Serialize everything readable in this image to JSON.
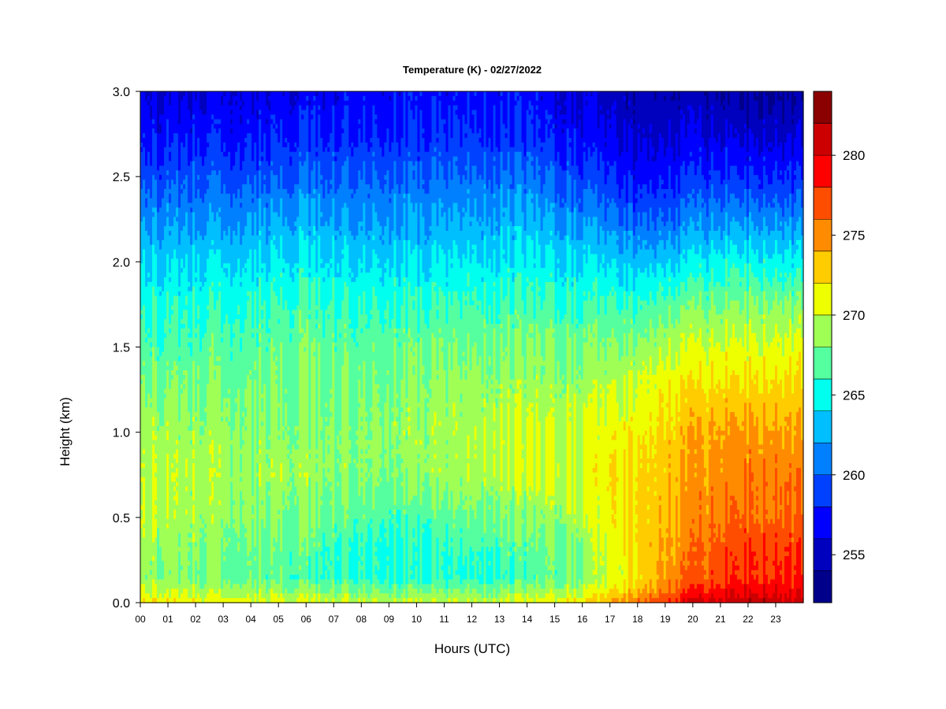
{
  "chart_data": {
    "type": "heatmap",
    "title": "Temperature (K) - 02/27/2022",
    "xlabel": "Hours (UTC)",
    "ylabel": "Height (km)",
    "xlim": [
      0,
      24
    ],
    "ylim": [
      0,
      3
    ],
    "x_ticks": [
      "00",
      "01",
      "02",
      "03",
      "04",
      "05",
      "06",
      "07",
      "08",
      "09",
      "10",
      "11",
      "12",
      "13",
      "14",
      "15",
      "16",
      "17",
      "18",
      "19",
      "20",
      "21",
      "22",
      "23"
    ],
    "y_ticks": [
      "0.0",
      "0.5",
      "1.0",
      "1.5",
      "2.0",
      "2.5",
      "3.0"
    ],
    "y_tick_values": [
      0,
      0.5,
      1.0,
      1.5,
      2.0,
      2.5,
      3.0
    ],
    "colorbar": {
      "min": 252,
      "max": 284,
      "step": 2,
      "tick_values": [
        255,
        260,
        265,
        270,
        275,
        280
      ],
      "tick_labels": [
        "255",
        "260",
        "265",
        "270",
        "275",
        "280"
      ],
      "colors": [
        "#00008b",
        "#0000bf",
        "#0000ff",
        "#0040ff",
        "#0080ff",
        "#00bfff",
        "#00ffee",
        "#55ffa0",
        "#a0ff55",
        "#eeff00",
        "#ffcc00",
        "#ff8c00",
        "#ff4d00",
        "#ff0000",
        "#cc0000",
        "#8b0000"
      ]
    },
    "profile_heights_km": [
      0.0,
      0.05,
      0.15,
      0.3,
      0.5,
      0.75,
      1.0,
      1.25,
      1.5,
      1.75,
      2.0,
      2.25,
      2.5,
      2.75,
      3.0
    ],
    "profile_hours": [
      0,
      2,
      4,
      6,
      8,
      10,
      12,
      14,
      16,
      17,
      18,
      19,
      20,
      21,
      22,
      23.9
    ],
    "temperature_K": [
      [
        272.0,
        271.5,
        271.2,
        270.8,
        270.5,
        270.0,
        270.0,
        271.0,
        272.0,
        274.0,
        276.0,
        278.0,
        280.0,
        281.0,
        281.5,
        281.0
      ],
      [
        270.5,
        270.0,
        269.5,
        269.0,
        268.5,
        268.5,
        268.5,
        269.0,
        270.0,
        272.0,
        274.0,
        276.0,
        278.5,
        279.5,
        280.0,
        279.5
      ],
      [
        268.5,
        268.0,
        267.5,
        266.5,
        266.0,
        265.5,
        266.0,
        266.5,
        268.0,
        270.0,
        272.0,
        274.5,
        276.0,
        277.5,
        278.0,
        278.0
      ],
      [
        269.0,
        268.5,
        267.5,
        267.0,
        266.0,
        265.5,
        266.5,
        267.0,
        268.5,
        270.5,
        272.5,
        274.0,
        275.5,
        277.0,
        278.0,
        277.5
      ],
      [
        269.5,
        269.0,
        268.5,
        268.0,
        267.0,
        266.5,
        268.0,
        268.0,
        269.5,
        271.0,
        272.5,
        273.5,
        275.0,
        276.0,
        276.0,
        276.0
      ],
      [
        269.5,
        269.5,
        269.0,
        269.0,
        268.5,
        268.5,
        269.5,
        270.0,
        270.5,
        271.5,
        272.5,
        273.0,
        274.0,
        275.0,
        275.5,
        275.5
      ],
      [
        269.0,
        269.0,
        268.5,
        268.5,
        268.5,
        269.0,
        269.5,
        270.0,
        270.0,
        271.0,
        271.5,
        272.5,
        273.5,
        274.5,
        274.5,
        274.0
      ],
      [
        268.0,
        268.0,
        268.0,
        268.0,
        268.0,
        268.5,
        269.0,
        269.0,
        269.0,
        269.5,
        270.5,
        271.5,
        272.0,
        272.5,
        272.5,
        272.5
      ],
      [
        266.5,
        267.0,
        267.0,
        267.5,
        267.0,
        267.5,
        268.0,
        268.0,
        268.0,
        268.0,
        268.5,
        269.5,
        270.0,
        270.5,
        270.5,
        270.5
      ],
      [
        265.5,
        265.5,
        266.0,
        266.5,
        266.0,
        266.0,
        266.5,
        266.5,
        266.0,
        266.0,
        266.0,
        267.0,
        267.5,
        268.0,
        268.0,
        268.0
      ],
      [
        263.5,
        264.0,
        264.0,
        264.5,
        264.0,
        264.0,
        264.5,
        264.5,
        264.0,
        263.5,
        263.0,
        263.5,
        264.0,
        265.0,
        265.0,
        264.5
      ],
      [
        261.5,
        261.5,
        262.0,
        262.5,
        262.0,
        262.0,
        262.5,
        262.5,
        261.5,
        260.5,
        260.0,
        260.0,
        261.0,
        261.5,
        261.5,
        261.0
      ],
      [
        259.0,
        259.5,
        259.5,
        260.0,
        260.0,
        260.0,
        260.5,
        260.5,
        259.0,
        258.0,
        257.0,
        257.5,
        258.0,
        258.5,
        258.0,
        258.0
      ],
      [
        257.0,
        257.5,
        257.5,
        258.0,
        258.0,
        258.0,
        258.5,
        258.0,
        257.0,
        256.0,
        255.5,
        255.5,
        256.0,
        256.0,
        255.5,
        255.5
      ],
      [
        256.0,
        256.0,
        256.5,
        256.5,
        257.0,
        257.0,
        257.5,
        257.0,
        256.0,
        255.0,
        254.5,
        254.5,
        254.5,
        254.0,
        253.5,
        253.5
      ]
    ]
  }
}
